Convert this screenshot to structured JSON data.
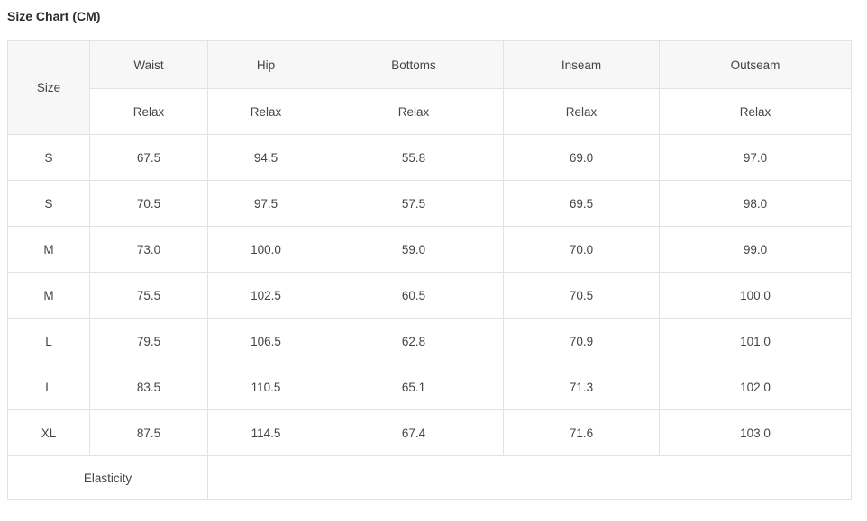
{
  "page": {
    "title": "Size Chart (CM)"
  },
  "colors": {
    "header_background": "#f7f7f7",
    "border": "#e2e2e2",
    "text": "#444444",
    "title_text": "#2b2b2b"
  },
  "table": {
    "corner_header": "Size",
    "columns": [
      {
        "label": "Waist",
        "sub": "Relax"
      },
      {
        "label": "Hip",
        "sub": "Relax"
      },
      {
        "label": "Bottoms",
        "sub": "Relax"
      },
      {
        "label": "Inseam",
        "sub": "Relax"
      },
      {
        "label": "Outseam",
        "sub": "Relax"
      }
    ],
    "rows": [
      {
        "size": "S",
        "values": [
          "67.5",
          "94.5",
          "55.8",
          "69.0",
          "97.0"
        ]
      },
      {
        "size": "S",
        "values": [
          "70.5",
          "97.5",
          "57.5",
          "69.5",
          "98.0"
        ]
      },
      {
        "size": "M",
        "values": [
          "73.0",
          "100.0",
          "59.0",
          "70.0",
          "99.0"
        ]
      },
      {
        "size": "M",
        "values": [
          "75.5",
          "102.5",
          "60.5",
          "70.5",
          "100.0"
        ]
      },
      {
        "size": "L",
        "values": [
          "79.5",
          "106.5",
          "62.8",
          "70.9",
          "101.0"
        ]
      },
      {
        "size": "L",
        "values": [
          "83.5",
          "110.5",
          "65.1",
          "71.3",
          "102.0"
        ]
      },
      {
        "size": "XL",
        "values": [
          "87.5",
          "114.5",
          "67.4",
          "71.6",
          "103.0"
        ]
      }
    ],
    "footer": {
      "label": "Elasticity",
      "value": ""
    }
  }
}
